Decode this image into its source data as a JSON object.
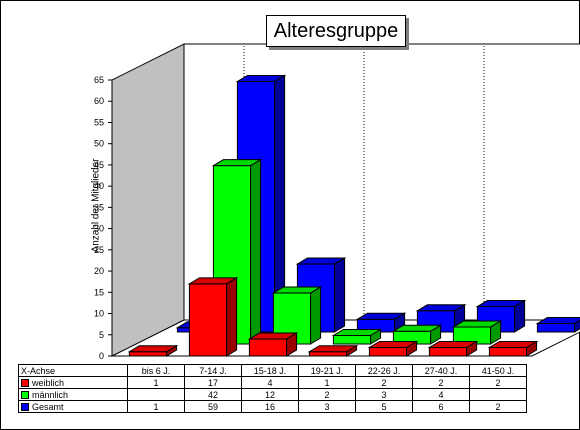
{
  "chart_data": {
    "type": "bar",
    "title": "Alteresgruppe",
    "ylabel": "Anzahl der Mitglieder",
    "xlabel": "X-Achse",
    "categories": [
      "bis 6 J.",
      "7-14 J.",
      "15-18 J.",
      "19-21 J.",
      "22-26 J.",
      "27-40 J.",
      "41-50 J."
    ],
    "yticks": [
      "0",
      "5",
      "10",
      "15",
      "20",
      "25",
      "30",
      "35",
      "40",
      "45",
      "50",
      "55",
      "60",
      "65"
    ],
    "ylim": [
      0,
      65
    ],
    "grid": true,
    "series": [
      {
        "name": "weiblich",
        "color": "#ff0000",
        "values": [
          1,
          17,
          4,
          1,
          2,
          2,
          2
        ],
        "labels": [
          "1",
          "17",
          "4",
          "1",
          "2",
          "2",
          "2"
        ]
      },
      {
        "name": "männlich",
        "color": "#00ff00",
        "values": [
          null,
          42,
          12,
          2,
          3,
          4,
          null
        ],
        "labels": [
          "",
          "42",
          "12",
          "2",
          "3",
          "4",
          ""
        ]
      },
      {
        "name": "Gesamt",
        "color": "#0000ff",
        "values": [
          1,
          59,
          16,
          3,
          5,
          6,
          2
        ],
        "labels": [
          "1",
          "59",
          "16",
          "3",
          "5",
          "6",
          "2"
        ]
      }
    ]
  }
}
